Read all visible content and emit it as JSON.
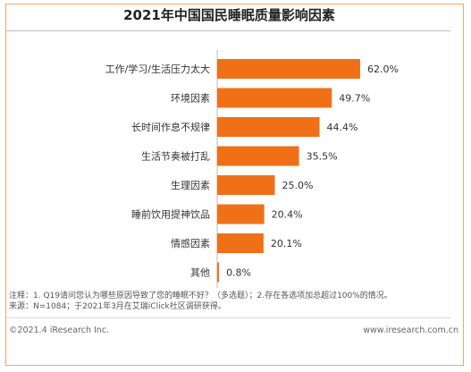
{
  "chart_data": {
    "type": "bar",
    "orientation": "horizontal",
    "title": "2021年中国国民睡眠质量影响因素",
    "categories": [
      "工作/学习/生活压力太大",
      "环境因素",
      "长时间作息不规律",
      "生活节奏被打乱",
      "生理因素",
      "睡前饮用提神饮品",
      "情感因素",
      "其他"
    ],
    "values": [
      62.0,
      49.7,
      44.4,
      35.5,
      25.0,
      20.4,
      20.1,
      0.8
    ],
    "value_labels": [
      "62.0%",
      "49.7%",
      "44.4%",
      "35.5%",
      "25.0%",
      "20.4%",
      "20.1%",
      "0.8%"
    ],
    "xlim": [
      0,
      100
    ],
    "bar_color": "#f07018",
    "grid": false
  },
  "footer": {
    "note": "注释：1. Q19请问您认为哪些原因导致了您的睡眠不好？（多选题）；2.存在各选项加总超过100%的情况。",
    "source": "来源：N=1084；于2021年3月在艾瑞iClick社区调研获得。",
    "copyright": "©2021.4 iResearch Inc.",
    "website": "www.iresearch.com.cn"
  },
  "colors": {
    "frame": "#f0a76a",
    "bar": "#f07018"
  }
}
